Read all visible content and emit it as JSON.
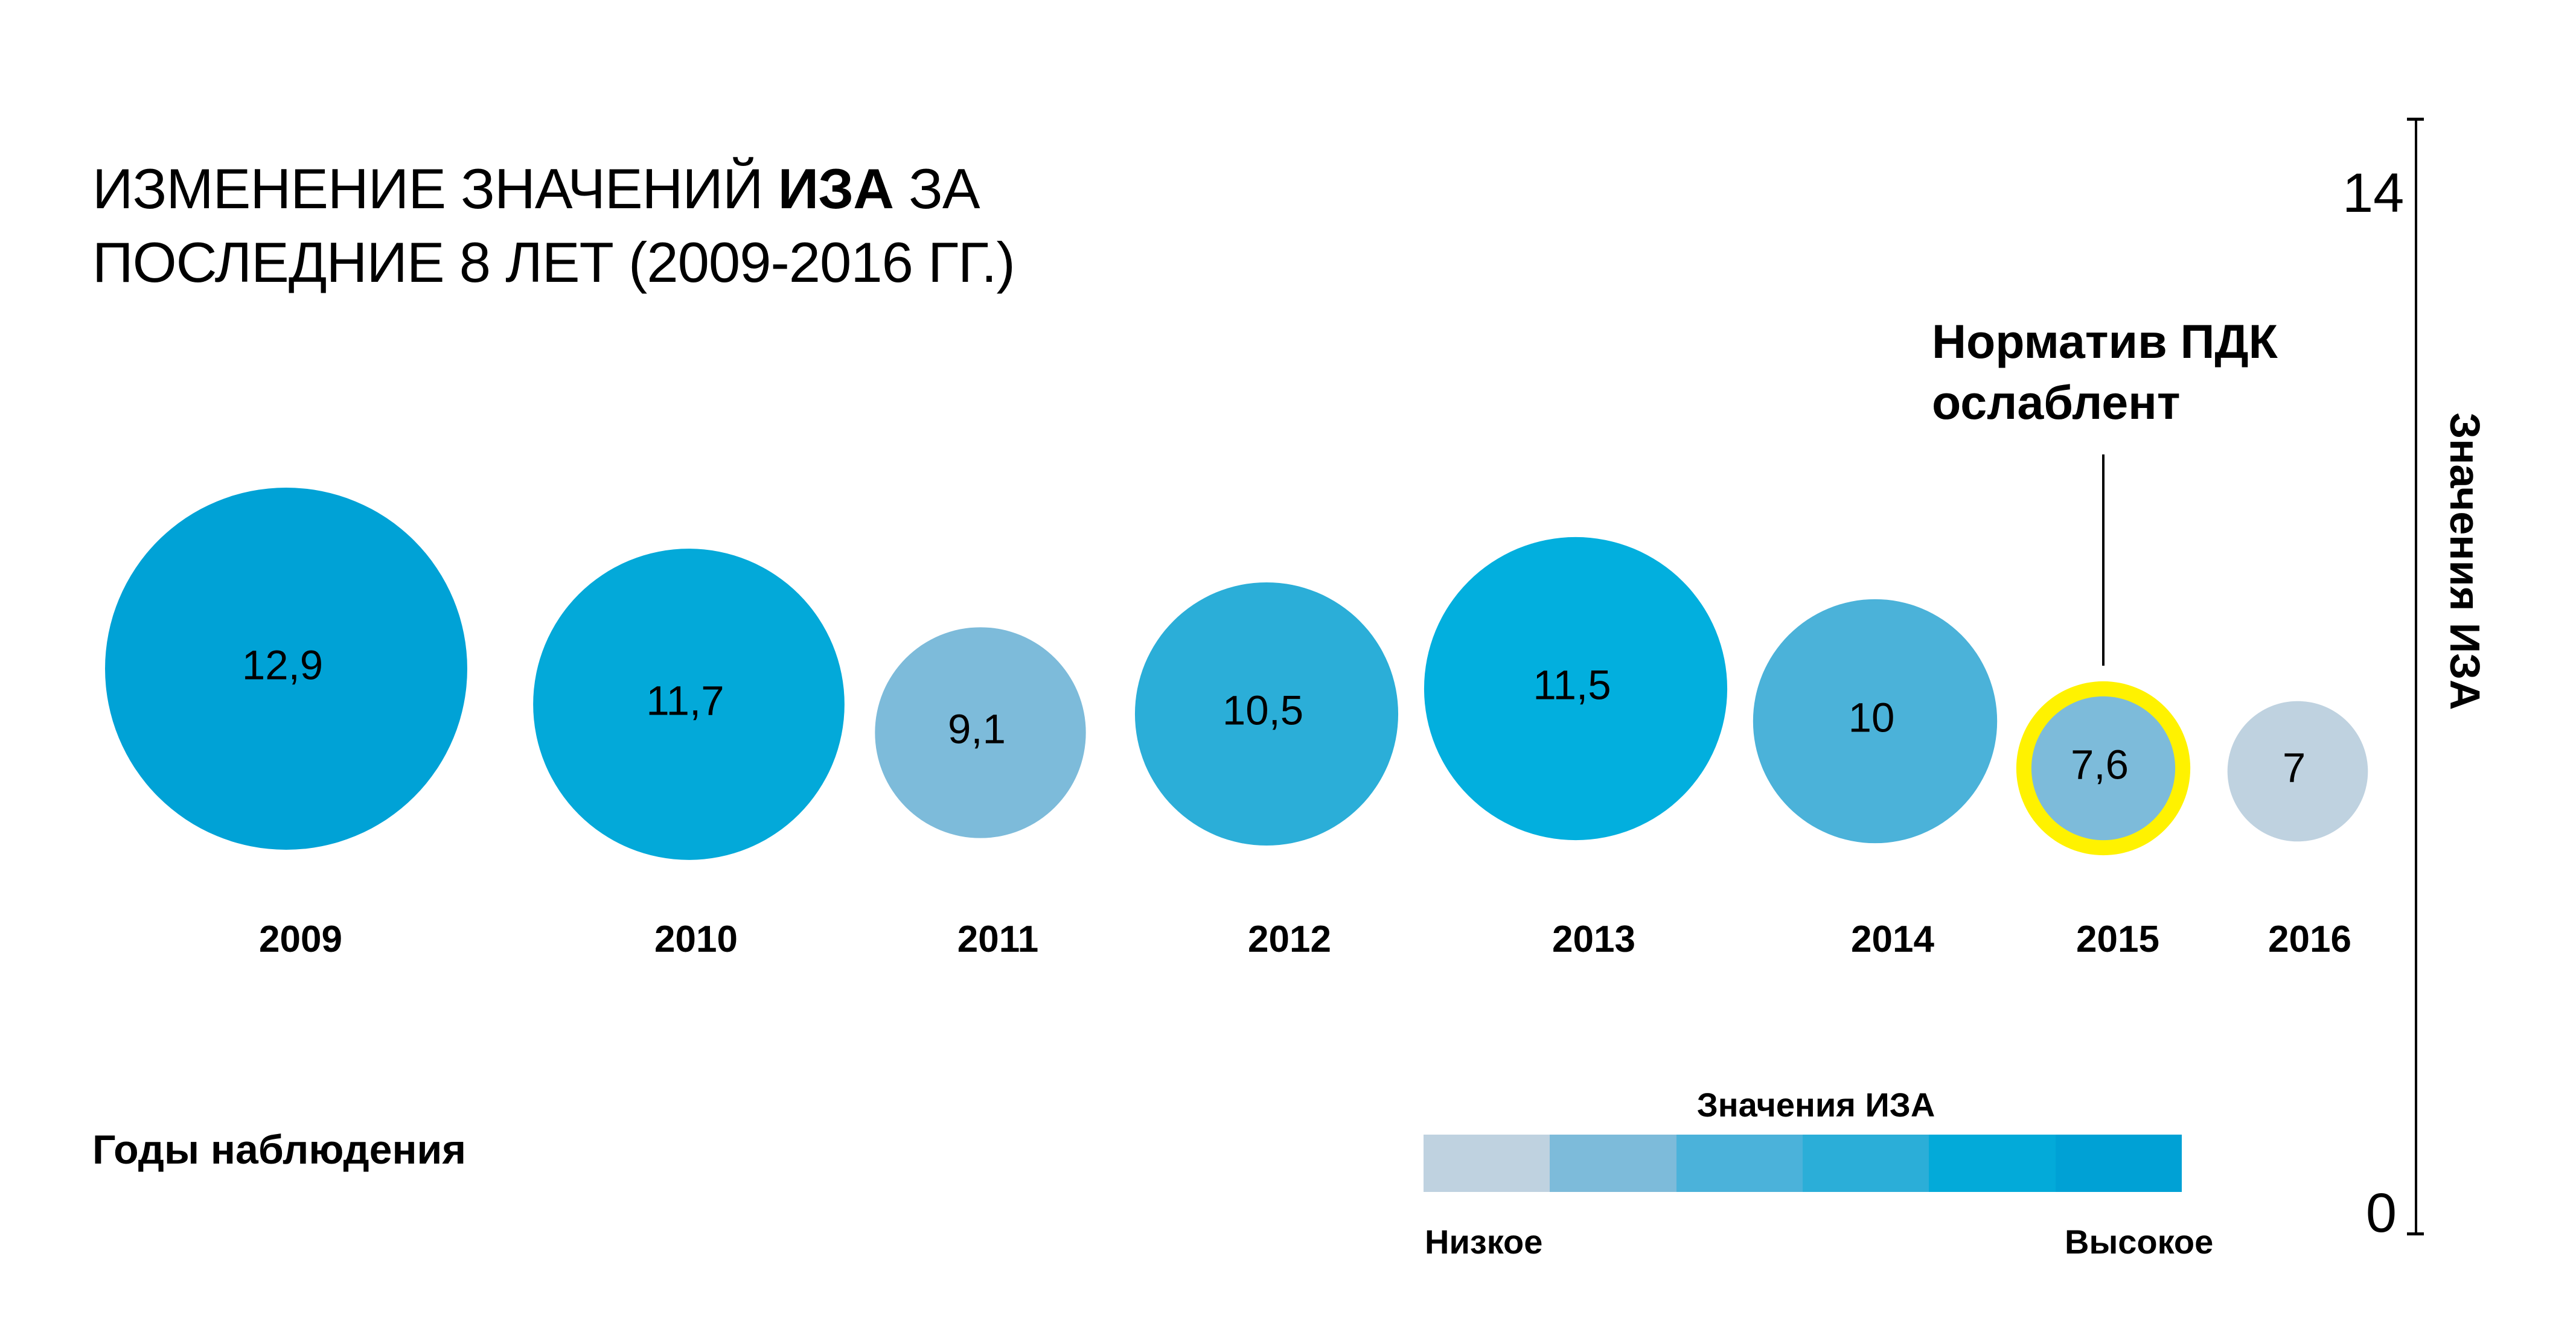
{
  "chart_data": {
    "type": "bubble",
    "title_parts": [
      "ИЗМЕНЕНИЕ ЗНАЧЕНИЙ ",
      "ИЗА",
      " ЗА"
    ],
    "title_line2": "ПОСЛЕДНИЕ 8 ЛЕТ (2009-2016 ГГ.)",
    "xlabel": "Годы наблюдения",
    "ylabel": "Значения ИЗА",
    "ylim": [
      0,
      14
    ],
    "y_ticks": [
      "0",
      "14"
    ],
    "categories": [
      "2009",
      "2010",
      "2011",
      "2012",
      "2013",
      "2014",
      "2015",
      "2016"
    ],
    "values": [
      12.9,
      11.7,
      9.1,
      10.5,
      11.5,
      10,
      7.6,
      7
    ],
    "value_labels": [
      "12,9",
      "11,7",
      "9,1",
      "10,5",
      "11,5",
      "10",
      "7,6",
      "7"
    ],
    "colors": [
      "#00A2D6",
      "#03A9D9",
      "#7DBBDA",
      "#2BAED8",
      "#02AFDE",
      "#4BB2D9",
      "#7DBBDA",
      "#BFD2E0"
    ],
    "highlight": {
      "category": "2015",
      "ring_color": "#FFF200",
      "annotation_line1": "Норматив ПДК",
      "annotation_line2": "ослаблент"
    },
    "legend": {
      "title": "Значения ИЗА",
      "low_label": "Низкое",
      "high_label": "Высокое",
      "scale_colors": [
        "#BFD2E0",
        "#7DBBDA",
        "#4BB2DA",
        "#2BAED8",
        "#03AAD9",
        "#00A1D5"
      ]
    },
    "grid": false
  }
}
